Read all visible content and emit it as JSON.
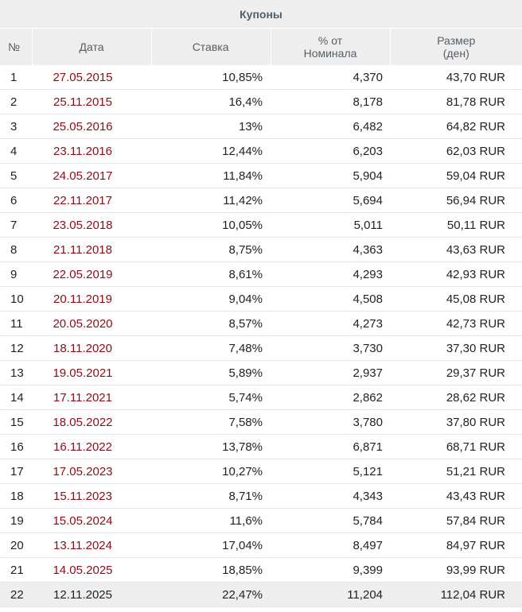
{
  "table": {
    "title": "Купоны",
    "columns": {
      "num": "№",
      "date": "Дата",
      "rate": "Ставка",
      "pct": "% от\nНоминала",
      "size": "Размер\n(ден)"
    },
    "rows": [
      {
        "num": "1",
        "date": "27.05.2015",
        "rate": "10,85%",
        "pct": "4,370",
        "size": "43,70 RUR"
      },
      {
        "num": "2",
        "date": "25.11.2015",
        "rate": "16,4%",
        "pct": "8,178",
        "size": "81,78 RUR"
      },
      {
        "num": "3",
        "date": "25.05.2016",
        "rate": "13%",
        "pct": "6,482",
        "size": "64,82 RUR"
      },
      {
        "num": "4",
        "date": "23.11.2016",
        "rate": "12,44%",
        "pct": "6,203",
        "size": "62,03 RUR"
      },
      {
        "num": "5",
        "date": "24.05.2017",
        "rate": "11,84%",
        "pct": "5,904",
        "size": "59,04 RUR"
      },
      {
        "num": "6",
        "date": "22.11.2017",
        "rate": "11,42%",
        "pct": "5,694",
        "size": "56,94 RUR"
      },
      {
        "num": "7",
        "date": "23.05.2018",
        "rate": "10,05%",
        "pct": "5,011",
        "size": "50,11 RUR"
      },
      {
        "num": "8",
        "date": "21.11.2018",
        "rate": "8,75%",
        "pct": "4,363",
        "size": "43,63 RUR"
      },
      {
        "num": "9",
        "date": "22.05.2019",
        "rate": "8,61%",
        "pct": "4,293",
        "size": "42,93 RUR"
      },
      {
        "num": "10",
        "date": "20.11.2019",
        "rate": "9,04%",
        "pct": "4,508",
        "size": "45,08 RUR"
      },
      {
        "num": "11",
        "date": "20.05.2020",
        "rate": "8,57%",
        "pct": "4,273",
        "size": "42,73 RUR"
      },
      {
        "num": "12",
        "date": "18.11.2020",
        "rate": "7,48%",
        "pct": "3,730",
        "size": "37,30 RUR"
      },
      {
        "num": "13",
        "date": "19.05.2021",
        "rate": "5,89%",
        "pct": "2,937",
        "size": "29,37 RUR"
      },
      {
        "num": "14",
        "date": "17.11.2021",
        "rate": "5,74%",
        "pct": "2,862",
        "size": "28,62 RUR"
      },
      {
        "num": "15",
        "date": "18.05.2022",
        "rate": "7,58%",
        "pct": "3,780",
        "size": "37,80 RUR"
      },
      {
        "num": "16",
        "date": "16.11.2022",
        "rate": "13,78%",
        "pct": "6,871",
        "size": "68,71 RUR"
      },
      {
        "num": "17",
        "date": "17.05.2023",
        "rate": "10,27%",
        "pct": "5,121",
        "size": "51,21 RUR"
      },
      {
        "num": "18",
        "date": "15.11.2023",
        "rate": "8,71%",
        "pct": "4,343",
        "size": "43,43 RUR"
      },
      {
        "num": "19",
        "date": "15.05.2024",
        "rate": "11,6%",
        "pct": "5,784",
        "size": "57,84 RUR"
      },
      {
        "num": "20",
        "date": "13.11.2024",
        "rate": "17,04%",
        "pct": "8,497",
        "size": "84,97 RUR"
      },
      {
        "num": "21",
        "date": "14.05.2025",
        "rate": "18,85%",
        "pct": "9,399",
        "size": "93,99 RUR"
      },
      {
        "num": "22",
        "date": "12.11.2025",
        "rate": "22,47%",
        "pct": "11,204",
        "size": "112,04 RUR",
        "current": true
      }
    ]
  },
  "colors": {
    "header_bg": "#eeeeee",
    "header_text": "#555e66",
    "past_date": "#8b0d17",
    "current_row_bg": "#eeeeee",
    "row_divider": "#e6e6e6"
  }
}
